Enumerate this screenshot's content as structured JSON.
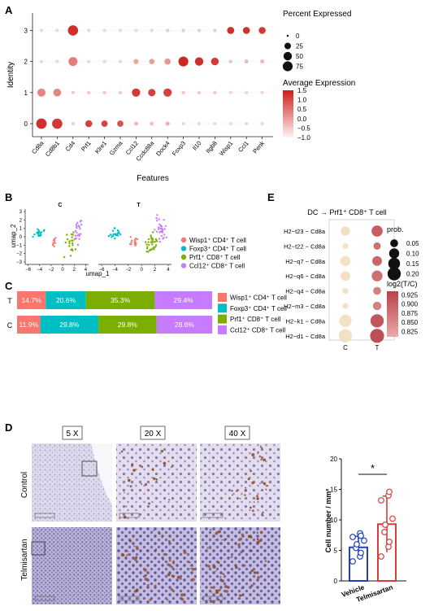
{
  "panel_labels": [
    "A",
    "B",
    "C",
    "D",
    "E"
  ],
  "chart_data": [
    {
      "panel": "A",
      "type": "scatter",
      "subtype": "dot-plot",
      "xlabel": "Features",
      "ylabel": "Identity",
      "features": [
        "Cd8a",
        "Cd8b1",
        "Cd4",
        "Prf1",
        "Klre1",
        "Gzma",
        "Ccl12",
        "Ccdc88a",
        "Dock4",
        "Foxp3",
        "Il10",
        "Itgb8",
        "Wisp1",
        "Ccl1",
        "Penk"
      ],
      "identities": [
        "0",
        "1",
        "2",
        "3"
      ],
      "percent_expressed_legend": {
        "title": "Percent Expressed",
        "levels": [
          "0",
          "25",
          "50",
          "75"
        ],
        "values": [
          0,
          25,
          50,
          75
        ]
      },
      "average_expression_legend": {
        "title": "Average Expression",
        "ticks": [
          "1.5",
          "1.0",
          "0.5",
          "0.0",
          "−0.5",
          "−1.0"
        ],
        "range": [
          -1.0,
          1.5
        ]
      },
      "pct_scale_max": 85,
      "points": [
        {
          "f": 0,
          "id": 0,
          "pct": 85,
          "exp": 1.3
        },
        {
          "f": 1,
          "id": 0,
          "pct": 82,
          "exp": 1.2
        },
        {
          "f": 2,
          "id": 0,
          "pct": 2,
          "exp": -0.5
        },
        {
          "f": 3,
          "id": 0,
          "pct": 30,
          "exp": 1.1
        },
        {
          "f": 4,
          "id": 0,
          "pct": 22,
          "exp": 1.1
        },
        {
          "f": 5,
          "id": 0,
          "pct": 22,
          "exp": 0.9
        },
        {
          "f": 6,
          "id": 0,
          "pct": 5,
          "exp": -0.3
        },
        {
          "f": 7,
          "id": 0,
          "pct": 5,
          "exp": -0.4
        },
        {
          "f": 8,
          "id": 0,
          "pct": 5,
          "exp": -0.2
        },
        {
          "f": 9,
          "id": 0,
          "pct": 2,
          "exp": -0.6
        },
        {
          "f": 10,
          "id": 0,
          "pct": 2,
          "exp": -0.6
        },
        {
          "f": 11,
          "id": 0,
          "pct": 2,
          "exp": -0.6
        },
        {
          "f": 12,
          "id": 0,
          "pct": 2,
          "exp": -0.6
        },
        {
          "f": 13,
          "id": 0,
          "pct": 2,
          "exp": -0.6
        },
        {
          "f": 14,
          "id": 0,
          "pct": 2,
          "exp": -0.6
        },
        {
          "f": 0,
          "id": 1,
          "pct": 45,
          "exp": 0.3
        },
        {
          "f": 1,
          "id": 1,
          "pct": 40,
          "exp": 0.3
        },
        {
          "f": 2,
          "id": 1,
          "pct": 2,
          "exp": -0.5
        },
        {
          "f": 3,
          "id": 1,
          "pct": 3,
          "exp": -0.5
        },
        {
          "f": 4,
          "id": 1,
          "pct": 3,
          "exp": -0.5
        },
        {
          "f": 5,
          "id": 1,
          "pct": 3,
          "exp": -0.5
        },
        {
          "f": 6,
          "id": 1,
          "pct": 48,
          "exp": 1.2
        },
        {
          "f": 7,
          "id": 1,
          "pct": 35,
          "exp": 1.1
        },
        {
          "f": 8,
          "id": 1,
          "pct": 48,
          "exp": 1.1
        },
        {
          "f": 9,
          "id": 1,
          "pct": 3,
          "exp": -0.5
        },
        {
          "f": 10,
          "id": 1,
          "pct": 3,
          "exp": -0.5
        },
        {
          "f": 11,
          "id": 1,
          "pct": 3,
          "exp": -0.5
        },
        {
          "f": 12,
          "id": 1,
          "pct": 2,
          "exp": -0.6
        },
        {
          "f": 13,
          "id": 1,
          "pct": 2,
          "exp": -0.6
        },
        {
          "f": 14,
          "id": 1,
          "pct": 2,
          "exp": -0.6
        },
        {
          "f": 0,
          "id": 2,
          "pct": 2,
          "exp": -0.6
        },
        {
          "f": 1,
          "id": 2,
          "pct": 2,
          "exp": -0.6
        },
        {
          "f": 2,
          "id": 2,
          "pct": 58,
          "exp": 0.4
        },
        {
          "f": 3,
          "id": 2,
          "pct": 2,
          "exp": -0.6
        },
        {
          "f": 4,
          "id": 2,
          "pct": 2,
          "exp": -0.6
        },
        {
          "f": 5,
          "id": 2,
          "pct": 2,
          "exp": -0.6
        },
        {
          "f": 6,
          "id": 2,
          "pct": 12,
          "exp": -0.1
        },
        {
          "f": 7,
          "id": 2,
          "pct": 15,
          "exp": 0.0
        },
        {
          "f": 8,
          "id": 2,
          "pct": 22,
          "exp": 0.1
        },
        {
          "f": 9,
          "id": 2,
          "pct": 75,
          "exp": 1.4
        },
        {
          "f": 10,
          "id": 2,
          "pct": 50,
          "exp": 1.3
        },
        {
          "f": 11,
          "id": 2,
          "pct": 38,
          "exp": 1.2
        },
        {
          "f": 12,
          "id": 2,
          "pct": 3,
          "exp": -0.4
        },
        {
          "f": 13,
          "id": 2,
          "pct": 5,
          "exp": -0.3
        },
        {
          "f": 14,
          "id": 2,
          "pct": 5,
          "exp": -0.3
        },
        {
          "f": 0,
          "id": 3,
          "pct": 2,
          "exp": -0.6
        },
        {
          "f": 1,
          "id": 3,
          "pct": 2,
          "exp": -0.6
        },
        {
          "f": 2,
          "id": 3,
          "pct": 82,
          "exp": 1.3
        },
        {
          "f": 3,
          "id": 3,
          "pct": 2,
          "exp": -0.6
        },
        {
          "f": 4,
          "id": 3,
          "pct": 2,
          "exp": -0.6
        },
        {
          "f": 5,
          "id": 3,
          "pct": 2,
          "exp": -0.6
        },
        {
          "f": 6,
          "id": 3,
          "pct": 2,
          "exp": -0.6
        },
        {
          "f": 7,
          "id": 3,
          "pct": 2,
          "exp": -0.6
        },
        {
          "f": 8,
          "id": 3,
          "pct": 3,
          "exp": -0.5
        },
        {
          "f": 9,
          "id": 3,
          "pct": 3,
          "exp": -0.5
        },
        {
          "f": 10,
          "id": 3,
          "pct": 3,
          "exp": -0.5
        },
        {
          "f": 11,
          "id": 3,
          "pct": 3,
          "exp": -0.5
        },
        {
          "f": 12,
          "id": 3,
          "pct": 32,
          "exp": 1.3
        },
        {
          "f": 13,
          "id": 3,
          "pct": 30,
          "exp": 1.3
        },
        {
          "f": 14,
          "id": 3,
          "pct": 30,
          "exp": 1.2
        }
      ]
    },
    {
      "panel": "B",
      "type": "scatter",
      "subtype": "umap",
      "xlabel": "umap_1",
      "ylabel": "umap_2",
      "facets": [
        "C",
        "T"
      ],
      "x_ticks": [
        -6,
        -4,
        -2,
        0,
        2,
        4
      ],
      "y_ticks": [
        3,
        2,
        1,
        0,
        -1,
        -2,
        -3
      ],
      "xlim": [
        -6.5,
        4.5
      ],
      "ylim": [
        -3.3,
        3.3
      ],
      "legend": [
        {
          "label": "Wisp1⁺ CD4⁺ T cell",
          "color": "#f8766d"
        },
        {
          "label": "Foxp3⁺ CD4⁺ T cell",
          "color": "#00bfc4"
        },
        {
          "label": "Prf1⁺ CD8⁺ T cell",
          "color": "#7cae00"
        },
        {
          "label": "Ccl12⁺ CD8⁺ T cell",
          "color": "#c77cff"
        }
      ]
    },
    {
      "panel": "C",
      "type": "bar",
      "subtype": "stacked-100",
      "categories": [
        "T",
        "C"
      ],
      "series": [
        {
          "name": "Wisp1⁺ CD4⁺ T cell",
          "color": "#f8766d",
          "values": [
            14.7,
            11.9
          ],
          "labels": [
            "14.7%",
            "11.9%"
          ]
        },
        {
          "name": "Foxp3⁺ CD4⁺ T cell",
          "color": "#00bfc4",
          "values": [
            20.6,
            29.8
          ],
          "labels": [
            "20.6%",
            "29.8%"
          ]
        },
        {
          "name": "Prf1⁺ CD8⁺ T cell",
          "color": "#7cae00",
          "values": [
            35.3,
            29.8
          ],
          "labels": [
            "35.3%",
            "29.8%"
          ]
        },
        {
          "name": "Ccl12⁺ CD8⁺ T cell",
          "color": "#c77cff",
          "values": [
            29.4,
            28.6
          ],
          "labels": [
            "29.4%",
            "28.6%"
          ]
        }
      ]
    },
    {
      "panel": "E",
      "type": "scatter",
      "subtype": "dot-plot",
      "title": "DC → Prf1⁺ CD8⁺ T cell",
      "x_categories": [
        "C",
        "T"
      ],
      "y_categories": [
        "H2−t23 − Cd8a",
        "H2−t22 − Cd8a",
        "H2−q7 − Cd8a",
        "H2−q6 − Cd8a",
        "H2−q4 − Cd8a",
        "H2−m3 − Cd8a",
        "H2−k1 − Cd8a",
        "H2−d1 − Cd8a"
      ],
      "size_legend": {
        "title": "prob.",
        "labels": [
          "0.05",
          "0.10",
          "0.15",
          "0.20"
        ],
        "values": [
          0.05,
          0.1,
          0.15,
          0.2
        ]
      },
      "color_legend": {
        "title": "log2(T/C)",
        "ticks": [
          "0.925",
          "0.900",
          "0.875",
          "0.850",
          "0.825"
        ],
        "range": [
          0.81,
          0.935
        ]
      },
      "prob_C": [
        0.08,
        0.02,
        0.1,
        0.09,
        0.02,
        0.02,
        0.17,
        0.2
      ],
      "prob_T": [
        0.13,
        0.04,
        0.09,
        0.12,
        0.05,
        0.06,
        0.2,
        0.23
      ],
      "log2_T": [
        0.9,
        0.88,
        0.89,
        0.88,
        0.86,
        0.86,
        0.91,
        0.92
      ]
    },
    {
      "panel": "D",
      "type": "bar",
      "ylabel": "Cell number / mm²",
      "categories": [
        "Vehicle",
        "Telmisartan"
      ],
      "values": [
        5.5,
        9.3
      ],
      "errors": [
        1.8,
        4.6
      ],
      "colors": [
        "#1f3fbf",
        "#d93a3a"
      ],
      "ylim": [
        0,
        20
      ],
      "y_ticks": [
        0,
        5,
        10,
        15,
        20
      ],
      "significance": "*",
      "individual_points": [
        [
          3.2,
          4.0,
          4.6,
          5.4,
          6.0,
          6.6,
          7.2,
          7.8,
          7.4
        ],
        [
          4.0,
          5.6,
          6.4,
          8.0,
          9.2,
          10.2,
          13.2,
          14.0,
          14.6
        ]
      ]
    }
  ],
  "micrographs": {
    "magnifications": [
      "5 X",
      "20 X",
      "40 X"
    ],
    "rows": [
      "Control",
      "Telmisartan"
    ]
  }
}
